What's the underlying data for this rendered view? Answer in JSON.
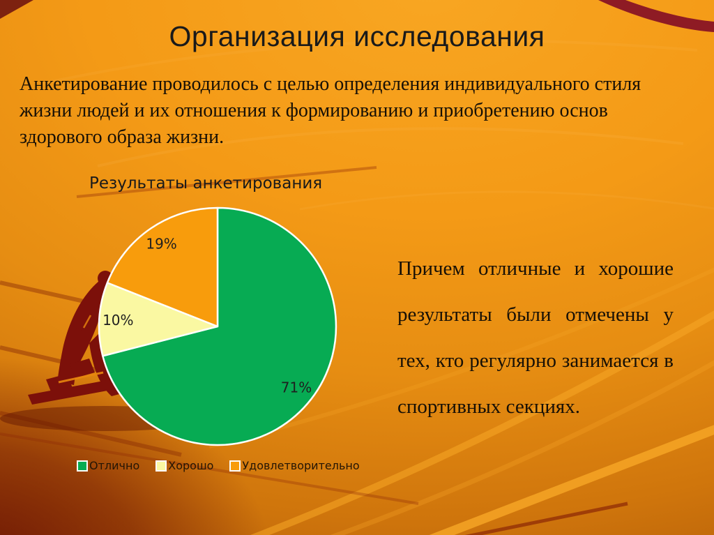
{
  "slide": {
    "title": "Организация исследования",
    "intro_text": "Анкетирование проводилось с целью определения индивидуального стиля жизни людей и их отношения к формированию и приобретению основ здорового образа жизни.",
    "side_note": "Причем отличные и хорошие результаты были отмечены у тех, кто регулярно занимается в спортивных секциях."
  },
  "chart_data": {
    "type": "pie",
    "title": "Результаты анкетирования",
    "categories": [
      "Отлично",
      "Хорошо",
      "Удовлетворительно"
    ],
    "values": [
      71,
      10,
      19
    ],
    "labels": [
      "71%",
      "10%",
      "19%"
    ],
    "colors": [
      "#07AB53",
      "#FAF8A2",
      "#F89C0C"
    ],
    "start_angle_deg": 0,
    "direction": "clockwise",
    "legend_position": "bottom",
    "slice_border_color": "#FFFFFF"
  },
  "style": {
    "bg_orange_bright": "#F6A01C",
    "bg_brown_dark": "#8A3B04",
    "bg_maroon_corner": "#8E1B24",
    "silhouette_maroon": "#7C100A",
    "lane_highlight": "#F8A727",
    "lane_shadow": "#8C2605",
    "text_dark": "#1A1A1A"
  }
}
